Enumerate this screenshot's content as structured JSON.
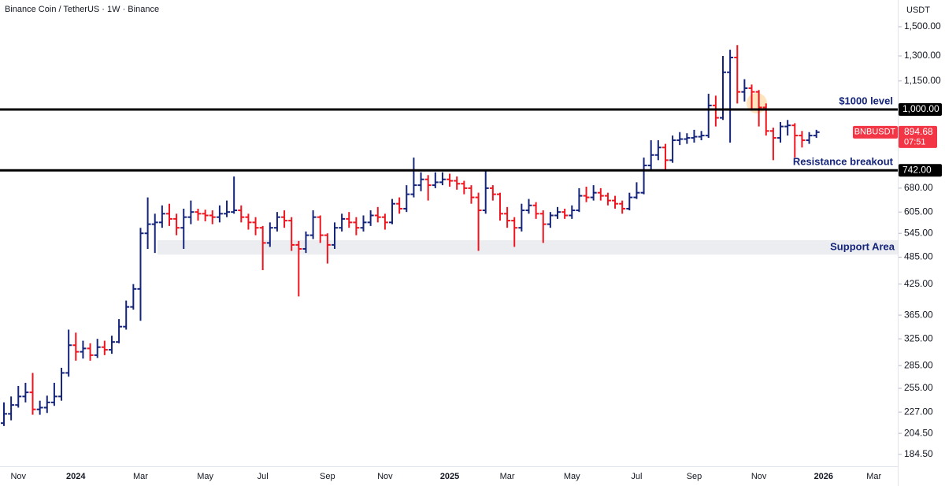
{
  "chart_data": {
    "type": "ohlc",
    "title": "Binance Coin / TetherUS · 1W · Binance",
    "y_label": "USDT",
    "log_scale": true,
    "up_color": "#14247a",
    "down_color": "#f0141e",
    "ylim": [
      172,
      1710
    ],
    "yticks": [
      {
        "value": 184.5,
        "label": "184.50"
      },
      {
        "value": 204.5,
        "label": "204.50"
      },
      {
        "value": 227,
        "label": "227.00"
      },
      {
        "value": 255,
        "label": "255.00"
      },
      {
        "value": 285,
        "label": "285.00"
      },
      {
        "value": 325,
        "label": "325.00"
      },
      {
        "value": 365,
        "label": "365.00"
      },
      {
        "value": 425,
        "label": "425.00"
      },
      {
        "value": 485,
        "label": "485.00"
      },
      {
        "value": 545,
        "label": "545.00"
      },
      {
        "value": 605,
        "label": "605.00"
      },
      {
        "value": 680,
        "label": "680.00"
      },
      {
        "value": 1150,
        "label": "1,150.00"
      },
      {
        "value": 1300,
        "label": "1,300.00"
      },
      {
        "value": 1500,
        "label": "1,500.00"
      }
    ],
    "categories": [
      null,
      null,
      "Nov",
      null,
      null,
      null,
      null,
      null,
      null,
      null,
      "2024",
      null,
      null,
      null,
      null,
      null,
      null,
      null,
      null,
      "Mar",
      null,
      null,
      null,
      null,
      null,
      null,
      null,
      null,
      "May",
      null,
      null,
      null,
      null,
      null,
      null,
      null,
      "Jul",
      null,
      null,
      null,
      null,
      null,
      null,
      null,
      null,
      "Sep",
      null,
      null,
      null,
      null,
      null,
      null,
      null,
      "Nov",
      null,
      null,
      null,
      null,
      null,
      null,
      null,
      null,
      "2025",
      null,
      null,
      null,
      null,
      null,
      null,
      null,
      "Mar",
      null,
      null,
      null,
      null,
      null,
      null,
      null,
      null,
      "May",
      null,
      null,
      null,
      null,
      null,
      null,
      null,
      null,
      "Jul",
      null,
      null,
      null,
      null,
      null,
      null,
      null,
      "Sep",
      null,
      null,
      null,
      null,
      null,
      null,
      null,
      null,
      "Nov",
      null,
      null,
      null,
      null,
      null,
      null,
      null,
      null,
      "2026",
      null,
      null,
      null,
      null,
      null,
      null,
      "Mar",
      null,
      null,
      null
    ],
    "open": [
      215,
      225,
      235,
      245,
      250,
      230,
      232,
      238,
      245,
      275,
      315,
      305,
      310,
      300,
      312,
      308,
      320,
      345,
      380,
      415,
      545,
      570,
      575,
      600,
      585,
      560,
      590,
      605,
      600,
      595,
      590,
      600,
      605,
      610,
      590,
      575,
      560,
      520,
      560,
      590,
      580,
      515,
      505,
      540,
      590,
      540,
      515,
      560,
      585,
      575,
      560,
      575,
      595,
      590,
      575,
      630,
      615,
      660,
      690,
      710,
      690,
      700,
      710,
      705,
      695,
      680,
      650,
      610,
      680,
      660,
      600,
      580,
      560,
      610,
      625,
      600,
      570,
      595,
      605,
      595,
      610,
      655,
      650,
      665,
      655,
      640,
      630,
      615,
      650,
      665,
      760,
      800,
      830,
      780,
      860,
      865,
      870,
      875,
      880,
      1020,
      960,
      1200,
      1290,
      1090,
      1110,
      1090,
      1010,
      900,
      870,
      920,
      925,
      880,
      860,
      880,
      null,
      null,
      null,
      null,
      null,
      null,
      null,
      null,
      null,
      null,
      null
    ],
    "high": [
      238,
      245,
      258,
      262,
      275,
      240,
      246,
      262,
      282,
      340,
      335,
      322,
      318,
      325,
      322,
      330,
      358,
      392,
      425,
      560,
      650,
      600,
      625,
      630,
      600,
      615,
      640,
      615,
      612,
      610,
      625,
      640,
      720,
      625,
      600,
      590,
      565,
      575,
      605,
      610,
      590,
      525,
      550,
      610,
      595,
      545,
      575,
      600,
      605,
      590,
      595,
      610,
      620,
      600,
      645,
      650,
      690,
      790,
      735,
      725,
      735,
      735,
      730,
      720,
      705,
      690,
      665,
      740,
      690,
      665,
      620,
      590,
      630,
      645,
      635,
      610,
      605,
      620,
      615,
      625,
      680,
      685,
      690,
      680,
      665,
      655,
      640,
      665,
      700,
      790,
      860,
      860,
      845,
      880,
      895,
      890,
      905,
      900,
      1080,
      1070,
      1300,
      1340,
      1371,
      1160,
      1130,
      1100,
      1030,
      915,
      940,
      950,
      935,
      900,
      895,
      905,
      null,
      null,
      null,
      null,
      null,
      null,
      null,
      null,
      null,
      null,
      null
    ],
    "low": [
      212,
      218,
      232,
      238,
      224,
      224,
      226,
      234,
      240,
      270,
      292,
      295,
      292,
      296,
      300,
      302,
      318,
      340,
      375,
      355,
      505,
      495,
      560,
      565,
      540,
      505,
      570,
      580,
      578,
      570,
      575,
      590,
      600,
      575,
      555,
      540,
      455,
      510,
      550,
      560,
      500,
      400,
      495,
      530,
      520,
      470,
      505,
      550,
      560,
      540,
      550,
      565,
      575,
      555,
      570,
      600,
      605,
      650,
      670,
      640,
      680,
      690,
      685,
      675,
      660,
      630,
      500,
      600,
      640,
      580,
      560,
      510,
      550,
      600,
      585,
      520,
      560,
      585,
      585,
      585,
      605,
      635,
      640,
      640,
      625,
      615,
      600,
      610,
      645,
      660,
      740,
      780,
      740,
      770,
      840,
      845,
      850,
      860,
      870,
      920,
      950,
      850,
      1030,
      1040,
      1000,
      920,
      880,
      780,
      850,
      880,
      790,
      830,
      845,
      870,
      null,
      null,
      null,
      null,
      null,
      null,
      null,
      null,
      null,
      null,
      null
    ],
    "close": [
      225,
      235,
      245,
      250,
      230,
      232,
      238,
      245,
      275,
      315,
      305,
      310,
      300,
      312,
      308,
      320,
      345,
      380,
      415,
      545,
      570,
      575,
      600,
      585,
      560,
      590,
      605,
      600,
      595,
      590,
      600,
      605,
      610,
      590,
      575,
      560,
      520,
      560,
      590,
      580,
      515,
      505,
      540,
      590,
      540,
      515,
      560,
      585,
      575,
      560,
      575,
      595,
      590,
      575,
      630,
      615,
      660,
      690,
      710,
      690,
      700,
      710,
      705,
      695,
      680,
      650,
      610,
      680,
      660,
      600,
      580,
      560,
      610,
      625,
      600,
      570,
      595,
      605,
      595,
      610,
      655,
      650,
      665,
      655,
      640,
      630,
      615,
      650,
      665,
      760,
      800,
      830,
      780,
      860,
      865,
      870,
      875,
      880,
      1020,
      960,
      1200,
      1290,
      1090,
      1110,
      1090,
      1010,
      900,
      870,
      920,
      925,
      880,
      860,
      880,
      894.68,
      null,
      null,
      null,
      null,
      null,
      null,
      null,
      null,
      null,
      null,
      null
    ],
    "levels": [
      {
        "value": 1000,
        "label": "1,000.00",
        "name": "$1000 level"
      },
      {
        "value": 742,
        "label": "742.00",
        "name": "Resistance breakout"
      }
    ],
    "zone": {
      "range": [
        491,
        527
      ],
      "name": "Support Area"
    },
    "last": {
      "symbol": "BNBUSDT",
      "value": 894.68,
      "countdown": "07:51"
    }
  }
}
